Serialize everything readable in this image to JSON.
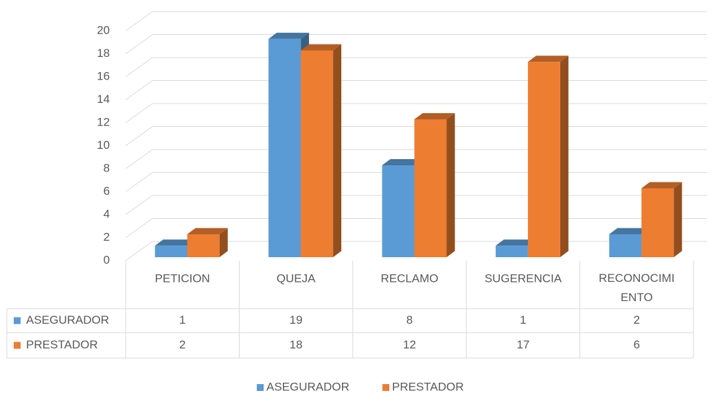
{
  "chart_data": {
    "type": "bar3d",
    "categories": [
      "PETICION",
      "QUEJA",
      "RECLAMO",
      "SUGERENCIA",
      "RECONOCIMIENTO"
    ],
    "series": [
      {
        "name": "ASEGURADOR",
        "color": "#5b9bd5",
        "values": [
          1,
          19,
          8,
          1,
          2
        ]
      },
      {
        "name": "PRESTADOR",
        "color": "#ed7d31",
        "values": [
          2,
          18,
          12,
          17,
          6
        ]
      }
    ],
    "ylim": [
      0,
      20
    ],
    "yticks": [
      0,
      2,
      4,
      6,
      8,
      10,
      12,
      14,
      16,
      18,
      20
    ],
    "grid": true,
    "data_table": true,
    "legend": "bottom"
  }
}
